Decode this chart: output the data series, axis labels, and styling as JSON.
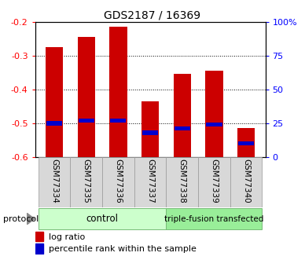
{
  "title": "GDS2187 / 16369",
  "samples": [
    "GSM77334",
    "GSM77335",
    "GSM77336",
    "GSM77337",
    "GSM77338",
    "GSM77339",
    "GSM77340"
  ],
  "log_ratio": [
    -0.275,
    -0.245,
    -0.215,
    -0.435,
    -0.355,
    -0.345,
    -0.515
  ],
  "percentile_rank": [
    25,
    27,
    27,
    18,
    21,
    24,
    10
  ],
  "ylim_left": [
    -0.6,
    -0.2
  ],
  "ylim_right": [
    0,
    100
  ],
  "yticks_left": [
    -0.6,
    -0.5,
    -0.4,
    -0.3,
    -0.2
  ],
  "yticks_right": [
    0,
    25,
    50,
    75,
    100
  ],
  "ytick_labels_right": [
    "0",
    "25",
    "50",
    "75",
    "100%"
  ],
  "bar_bottom": -0.6,
  "bar_color": "#cc0000",
  "percentile_color": "#0000cc",
  "group1_label": "control",
  "group1_count": 4,
  "group2_label": "triple-fusion transfected",
  "group2_count": 3,
  "group1_color": "#ccffcc",
  "group2_color": "#99ee99",
  "sample_box_color": "#cccccc",
  "protocol_label": "protocol",
  "legend_log_ratio": "log ratio",
  "legend_percentile": "percentile rank within the sample",
  "bar_width": 0.55
}
